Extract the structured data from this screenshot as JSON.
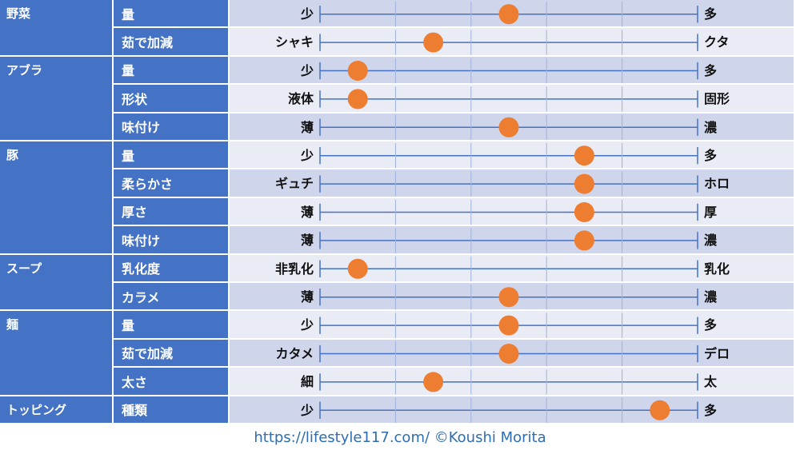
{
  "chart_data": {
    "type": "scale-rating",
    "scale": {
      "min": 0,
      "max": 5,
      "gridlines": [
        1,
        2,
        3,
        4
      ]
    },
    "colors": {
      "category_bg": "#4472c4",
      "band_odd": "#cfd5ea",
      "band_even": "#e9ebf5",
      "axis_line": "#4472c4",
      "marker": "#ed7d31"
    },
    "categories": [
      {
        "name": "野菜",
        "rows": [
          {
            "label": "量",
            "left": "少",
            "right": "多",
            "value": 2.5
          },
          {
            "label": "茹で加減",
            "left": "シャキ",
            "right": "クタ",
            "value": 1.5
          }
        ]
      },
      {
        "name": "アブラ",
        "rows": [
          {
            "label": "量",
            "left": "少",
            "right": "多",
            "value": 0.5
          },
          {
            "label": "形状",
            "left": "液体",
            "right": "固形",
            "value": 0.5
          },
          {
            "label": "味付け",
            "left": "薄",
            "right": "濃",
            "value": 2.5
          }
        ]
      },
      {
        "name": "豚",
        "rows": [
          {
            "label": "量",
            "left": "少",
            "right": "多",
            "value": 3.5
          },
          {
            "label": "柔らかさ",
            "left": "ギュチ",
            "right": "ホロ",
            "value": 3.5
          },
          {
            "label": "厚さ",
            "left": "薄",
            "right": "厚",
            "value": 3.5
          },
          {
            "label": "味付け",
            "left": "薄",
            "right": "濃",
            "value": 3.5
          }
        ]
      },
      {
        "name": "スープ",
        "rows": [
          {
            "label": "乳化度",
            "left": "非乳化",
            "right": "乳化",
            "value": 0.5
          },
          {
            "label": "カラメ",
            "left": "薄",
            "right": "濃",
            "value": 2.5
          }
        ]
      },
      {
        "name": "麺",
        "rows": [
          {
            "label": "量",
            "left": "少",
            "right": "多",
            "value": 2.5
          },
          {
            "label": "茹で加減",
            "left": "カタメ",
            "right": "デロ",
            "value": 2.5
          },
          {
            "label": "太さ",
            "left": "細",
            "right": "太",
            "value": 1.5
          }
        ]
      },
      {
        "name": "トッピング",
        "rows": [
          {
            "label": "種類",
            "left": "少",
            "right": "多",
            "value": 4.5
          }
        ]
      }
    ]
  },
  "footer": {
    "text": "https://lifestyle117.com/  ©Koushi Morita"
  }
}
